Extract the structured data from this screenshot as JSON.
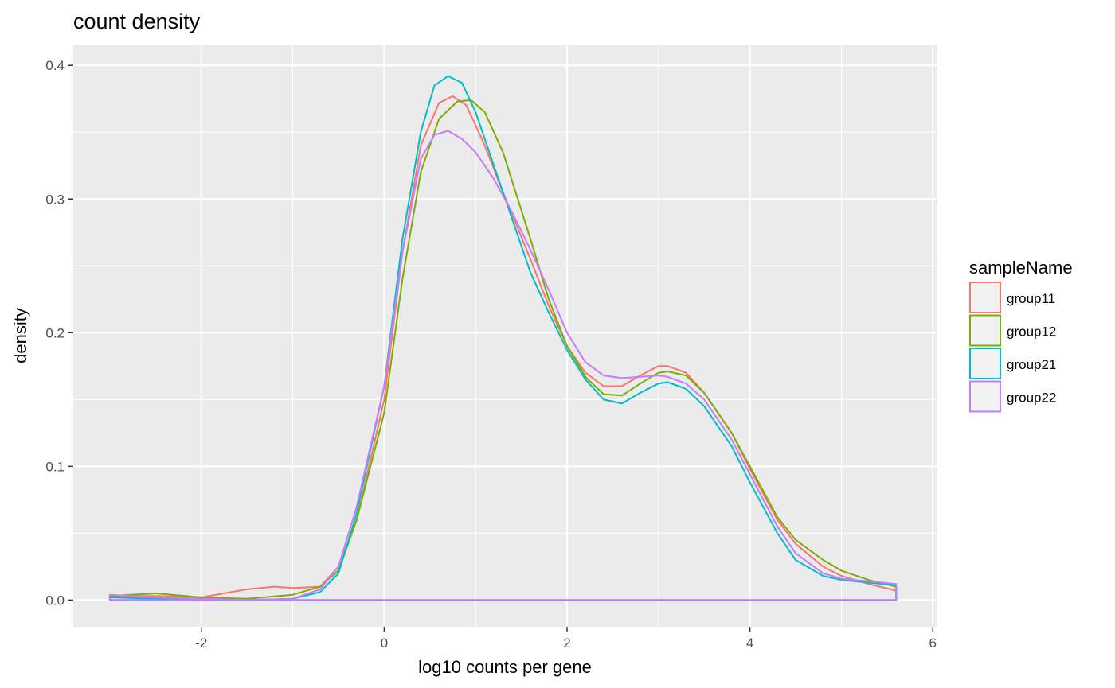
{
  "chart_data": {
    "type": "line",
    "title": "count density",
    "xlabel": "log10 counts per gene",
    "ylabel": "density",
    "xlim": [
      -3.4,
      6.05
    ],
    "ylim": [
      -0.02,
      0.415
    ],
    "x_ticks": [
      -2,
      0,
      2,
      4,
      6
    ],
    "x_tick_labels": [
      "-2",
      "0",
      "2",
      "4",
      "6"
    ],
    "y_ticks": [
      0.0,
      0.1,
      0.2,
      0.3,
      0.4
    ],
    "y_tick_labels": [
      "0.0",
      "0.1",
      "0.2",
      "0.3",
      "0.4"
    ],
    "grid": true,
    "legend": {
      "title": "sampleName",
      "position": "right"
    },
    "series": [
      {
        "name": "group11",
        "color": "#F8766D",
        "x": [
          -3.0,
          -2.5,
          -2.0,
          -1.5,
          -1.2,
          -1.0,
          -0.7,
          -0.5,
          -0.3,
          0.0,
          0.2,
          0.4,
          0.6,
          0.75,
          0.9,
          1.1,
          1.3,
          1.6,
          1.8,
          2.0,
          2.2,
          2.4,
          2.6,
          2.8,
          3.0,
          3.1,
          3.3,
          3.5,
          3.8,
          4.0,
          4.3,
          4.5,
          4.8,
          5.0,
          5.3,
          5.6
        ],
        "y": [
          0.003,
          0.003,
          0.002,
          0.008,
          0.01,
          0.009,
          0.01,
          0.025,
          0.06,
          0.15,
          0.26,
          0.34,
          0.372,
          0.377,
          0.37,
          0.34,
          0.305,
          0.255,
          0.22,
          0.19,
          0.17,
          0.16,
          0.16,
          0.168,
          0.175,
          0.175,
          0.17,
          0.155,
          0.125,
          0.098,
          0.06,
          0.042,
          0.025,
          0.018,
          0.012,
          0.007
        ]
      },
      {
        "name": "group12",
        "color": "#7CAE00",
        "x": [
          -3.0,
          -2.5,
          -2.0,
          -1.5,
          -1.0,
          -0.7,
          -0.5,
          -0.3,
          0.0,
          0.2,
          0.4,
          0.6,
          0.8,
          0.95,
          1.1,
          1.3,
          1.6,
          1.8,
          2.0,
          2.2,
          2.4,
          2.6,
          2.8,
          3.0,
          3.1,
          3.3,
          3.5,
          3.8,
          4.0,
          4.3,
          4.5,
          4.8,
          5.0,
          5.3,
          5.6
        ],
        "y": [
          0.003,
          0.005,
          0.002,
          0.001,
          0.004,
          0.01,
          0.022,
          0.06,
          0.14,
          0.24,
          0.32,
          0.36,
          0.373,
          0.374,
          0.365,
          0.335,
          0.27,
          0.225,
          0.19,
          0.167,
          0.154,
          0.153,
          0.162,
          0.17,
          0.171,
          0.168,
          0.155,
          0.125,
          0.1,
          0.062,
          0.045,
          0.03,
          0.022,
          0.015,
          0.01
        ]
      },
      {
        "name": "group21",
        "color": "#00BFC4",
        "x": [
          -3.0,
          -2.5,
          -2.0,
          -1.5,
          -1.0,
          -0.7,
          -0.5,
          -0.3,
          0.0,
          0.2,
          0.4,
          0.55,
          0.7,
          0.85,
          1.0,
          1.2,
          1.4,
          1.6,
          1.8,
          2.0,
          2.2,
          2.4,
          2.6,
          2.8,
          3.0,
          3.1,
          3.3,
          3.5,
          3.8,
          4.0,
          4.3,
          4.5,
          4.8,
          5.0,
          5.3,
          5.6
        ],
        "y": [
          0.002,
          0.001,
          0.0,
          0.0,
          0.001,
          0.006,
          0.02,
          0.065,
          0.16,
          0.27,
          0.35,
          0.385,
          0.392,
          0.387,
          0.365,
          0.325,
          0.285,
          0.245,
          0.215,
          0.187,
          0.165,
          0.15,
          0.147,
          0.155,
          0.162,
          0.163,
          0.158,
          0.145,
          0.115,
          0.088,
          0.05,
          0.03,
          0.018,
          0.015,
          0.013,
          0.011
        ]
      },
      {
        "name": "group22",
        "color": "#C77CFF",
        "x": [
          -3.0,
          -2.5,
          -2.0,
          -1.5,
          -1.0,
          -0.7,
          -0.5,
          -0.3,
          0.0,
          0.2,
          0.4,
          0.55,
          0.7,
          0.85,
          1.0,
          1.2,
          1.4,
          1.6,
          1.8,
          2.0,
          2.2,
          2.4,
          2.6,
          2.8,
          3.0,
          3.1,
          3.3,
          3.5,
          3.8,
          4.0,
          4.3,
          4.5,
          4.8,
          5.0,
          5.3,
          5.6
        ],
        "y": [
          0.004,
          0.002,
          0.001,
          0.0,
          0.001,
          0.008,
          0.025,
          0.07,
          0.16,
          0.26,
          0.33,
          0.348,
          0.351,
          0.345,
          0.335,
          0.315,
          0.29,
          0.262,
          0.232,
          0.2,
          0.178,
          0.168,
          0.166,
          0.167,
          0.168,
          0.167,
          0.162,
          0.15,
          0.12,
          0.094,
          0.055,
          0.035,
          0.02,
          0.016,
          0.014,
          0.012
        ]
      }
    ]
  }
}
